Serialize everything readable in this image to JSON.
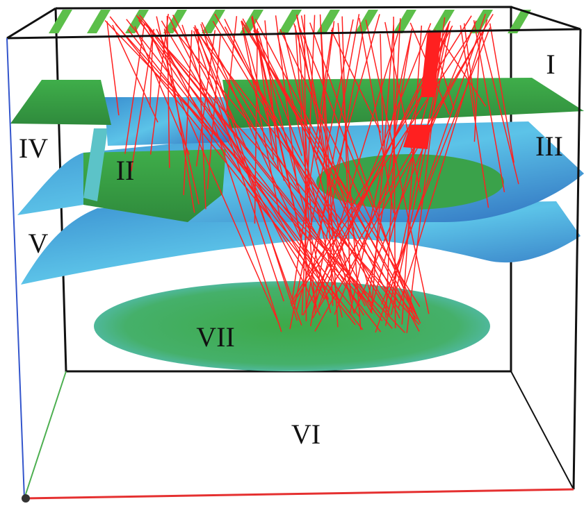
{
  "zones": [
    {
      "label": "I"
    },
    {
      "label": "II"
    },
    {
      "label": "III"
    },
    {
      "label": "IV"
    },
    {
      "label": "V"
    },
    {
      "label": "VI"
    },
    {
      "label": "VII"
    }
  ]
}
